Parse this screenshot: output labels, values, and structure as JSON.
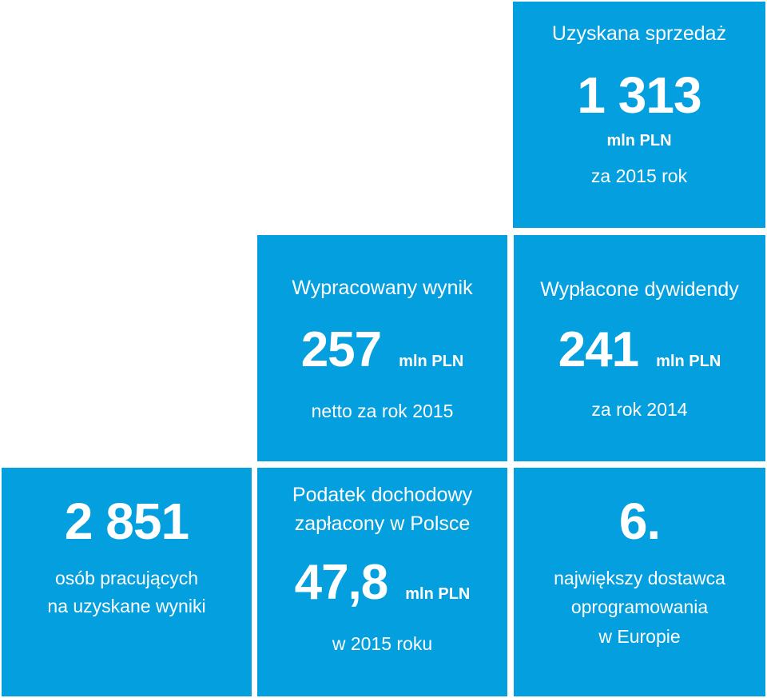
{
  "tiles": {
    "sales": {
      "label": "Uzyskana sprzedaż",
      "value": "1 313",
      "unit": "mln PLN",
      "sub": "za 2015 rok"
    },
    "result": {
      "label": "Wypracowany wynik",
      "value": "257",
      "unit": "mln PLN",
      "sub": "netto za rok 2015"
    },
    "dividends": {
      "label": "Wypłacone dywidendy",
      "value": "241",
      "unit": "mln PLN",
      "sub": "za rok 2014"
    },
    "employees": {
      "value": "2 851",
      "sub_line1": "osób pracujących",
      "sub_line2": "na uzyskane wyniki"
    },
    "tax": {
      "label_line1": "Podatek dochodowy",
      "label_line2": "zapłacony w Polsce",
      "value": "47,8",
      "unit": "mln PLN",
      "sub": "w 2015 roku"
    },
    "rank": {
      "value": "6.",
      "sub_line1": "największy dostawca",
      "sub_line2": "oprogramowania",
      "sub_line3": "w Europie"
    }
  },
  "colors": {
    "tile_background": "#039fdf",
    "text": "#ffffff",
    "page_background": "#ffffff"
  }
}
